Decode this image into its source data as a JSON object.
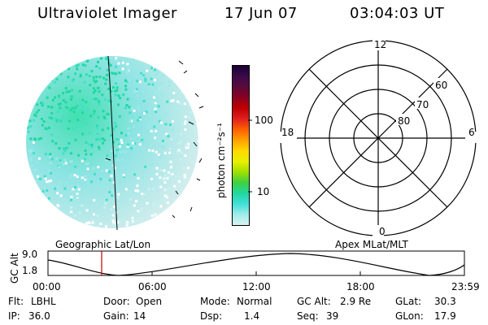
{
  "header": {
    "title": "Ultraviolet Imager",
    "date": "17 Jun 07",
    "time": "03:04:03 UT"
  },
  "image_panel": {
    "label": "Geographic Lat/Lon"
  },
  "colorbar": {
    "units_label": "photon cm⁻²s⁻¹",
    "ticks": [
      "100",
      "10"
    ],
    "colors": [
      "#1a0033",
      "#3b0a4a",
      "#5c0a3a",
      "#8a0020",
      "#c00000",
      "#e02020",
      "#ff6000",
      "#ffa000",
      "#ffd800",
      "#e8f000",
      "#a0e000",
      "#40d040",
      "#20d8a0",
      "#40e0d8",
      "#a0ece8",
      "#d8f4f4"
    ]
  },
  "polar_panel": {
    "label": "Apex MLat/MLT",
    "mlt_labels": {
      "top": "12",
      "left": "18",
      "right": "6",
      "bottom": "0"
    },
    "mlat_labels": [
      "60",
      "70",
      "80"
    ]
  },
  "altitude_plot": {
    "ylabel": "GC Alt",
    "yticks": [
      "9.0",
      "1.8"
    ],
    "xticks": [
      "00:00",
      "06:00",
      "12:00",
      "18:00",
      "23:59"
    ],
    "current_time_marker": "03:04"
  },
  "info": {
    "flt_label": "Flt:",
    "flt_value": "LBHL",
    "ip_label": "IP:",
    "ip_value": "36.0",
    "door_label": "Door:",
    "door_value": "Open",
    "gain_label": "Gain:",
    "gain_value": "14",
    "mode_label": "Mode:",
    "mode_value": "Normal",
    "dsp_label": "Dsp:",
    "dsp_value": "1.4",
    "gcalt_label": "GC Alt:",
    "gcalt_value": "2.9 Re",
    "seq_label": "Seq:",
    "seq_value": "39",
    "glat_label": "GLat:",
    "glat_value": "30.3",
    "glon_label": "GLon:",
    "glon_value": "17.9"
  }
}
